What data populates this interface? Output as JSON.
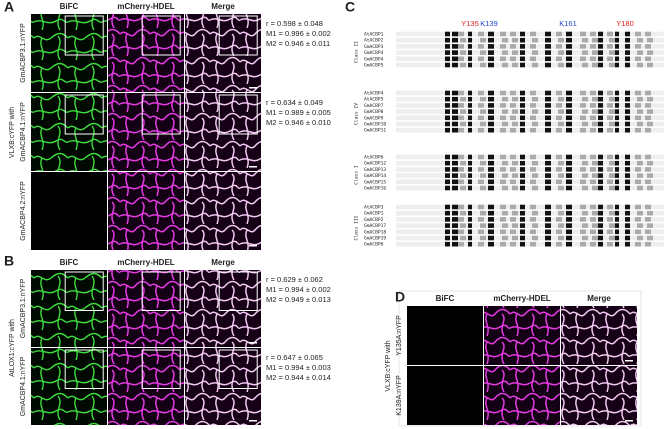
{
  "panel_a": {
    "label": "A",
    "columns": [
      "BiFC",
      "mCherry-HDEL",
      "Merge"
    ],
    "group_label": "VLXB:cYFP with",
    "rows": [
      {
        "label": "GmACBP3.1:nYFP",
        "stats": [
          "r = 0.598 ± 0.048",
          "M1 = 0.996 ± 0.002",
          "M2 = 0.946 ± 0.011"
        ]
      },
      {
        "label": "GmACBP4.1:nYFP",
        "stats": [
          "r = 0.634 ± 0.049",
          "M1 = 0.989 ± 0.005",
          "M2 = 0.946 ± 0.010"
        ]
      },
      {
        "label": "GmACBP4.2:nYFP"
      }
    ]
  },
  "panel_b": {
    "label": "B",
    "columns": [
      "BiFC",
      "mCherry-HDEL",
      "Merge"
    ],
    "group_label": "AtLOX1:cYFP with",
    "rows": [
      {
        "label": "GmACBP3.1:nYFP",
        "stats": [
          "r = 0.629 ± 0.062",
          "M1 = 0.994 ± 0.002",
          "M2 = 0.949 ± 0.013"
        ]
      },
      {
        "label": "GmACBP4.1:nYFP",
        "stats": [
          "r = 0.647 ± 0.065",
          "M1 = 0.994 ± 0.003",
          "M2 = 0.944 ± 0.014"
        ]
      }
    ]
  },
  "panel_c": {
    "label": "C",
    "residues": [
      "Y135",
      "K139",
      "K161",
      "Y180"
    ],
    "classes": [
      {
        "name": "Class II",
        "sequences": [
          "AtACBP1",
          "AtACBP2",
          "GmACBP3",
          "GmACBP4",
          "GmACBP4",
          "GmACBP5"
        ]
      },
      {
        "name": "Class IV",
        "sequences": [
          "AtACBP4",
          "AtACBP5",
          "GmACBP7",
          "GmACBP8",
          "GmACBP9",
          "GmACBP10",
          "GmACBP11"
        ]
      },
      {
        "name": "Class I",
        "sequences": [
          "AtACBP6",
          "GmACBP12",
          "GmACBP13",
          "GmACBP14",
          "GmACBP15",
          "GmACBP16"
        ]
      },
      {
        "name": "Class III",
        "sequences": [
          "AtACBP3",
          "GmACBP1",
          "GmACBP2",
          "GmACBP17",
          "GmACBP18",
          "GmACBP19",
          "GmACBP6"
        ]
      }
    ]
  },
  "panel_d": {
    "label": "D",
    "columns": [
      "BiFC",
      "mCherry-HDEL",
      "Merge"
    ],
    "group_label": "VLXB:cYFP with",
    "rows": [
      {
        "label": "Y135A:nYFP"
      },
      {
        "label": "K139A:nYFP"
      }
    ]
  }
}
